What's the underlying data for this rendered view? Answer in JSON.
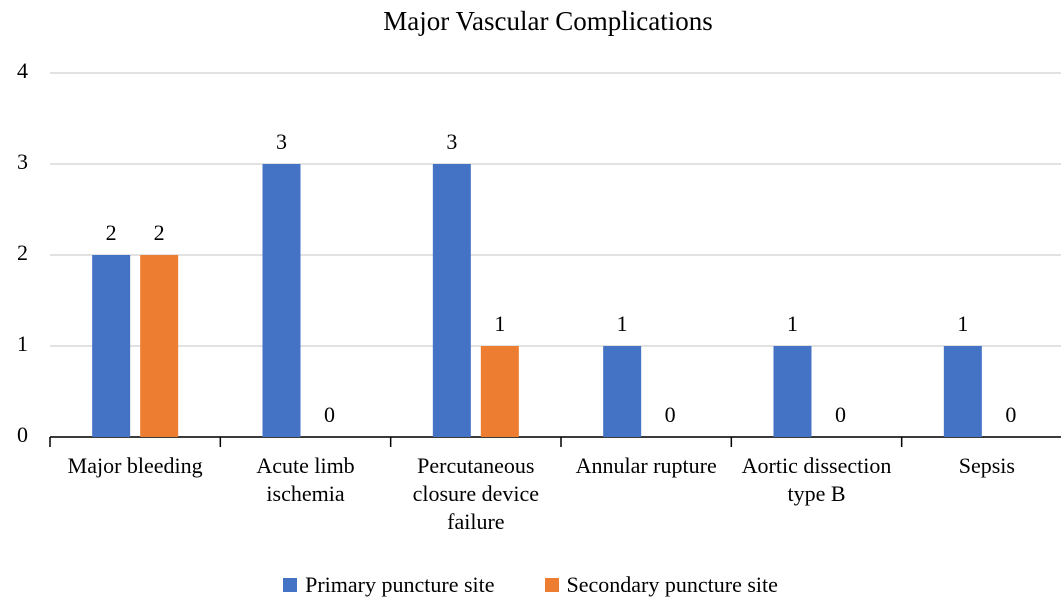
{
  "chart_data": {
    "type": "bar",
    "title": "Major Vascular Complications",
    "categories": [
      "Major bleeding",
      "Acute limb ischemia",
      "Percutaneous closure device failure",
      "Annular rupture",
      "Aortic dissection type B",
      "Sepsis"
    ],
    "series": [
      {
        "name": "Primary puncture site",
        "color": "#4472c4",
        "values": [
          2,
          3,
          3,
          1,
          1,
          1
        ]
      },
      {
        "name": "Secondary puncture site",
        "color": "#ed7d31",
        "values": [
          2,
          0,
          1,
          0,
          0,
          0
        ]
      }
    ],
    "ylim": [
      0,
      4
    ],
    "yticks": [
      0,
      1,
      2,
      3,
      4
    ],
    "grid": true,
    "legend": "bottom"
  }
}
